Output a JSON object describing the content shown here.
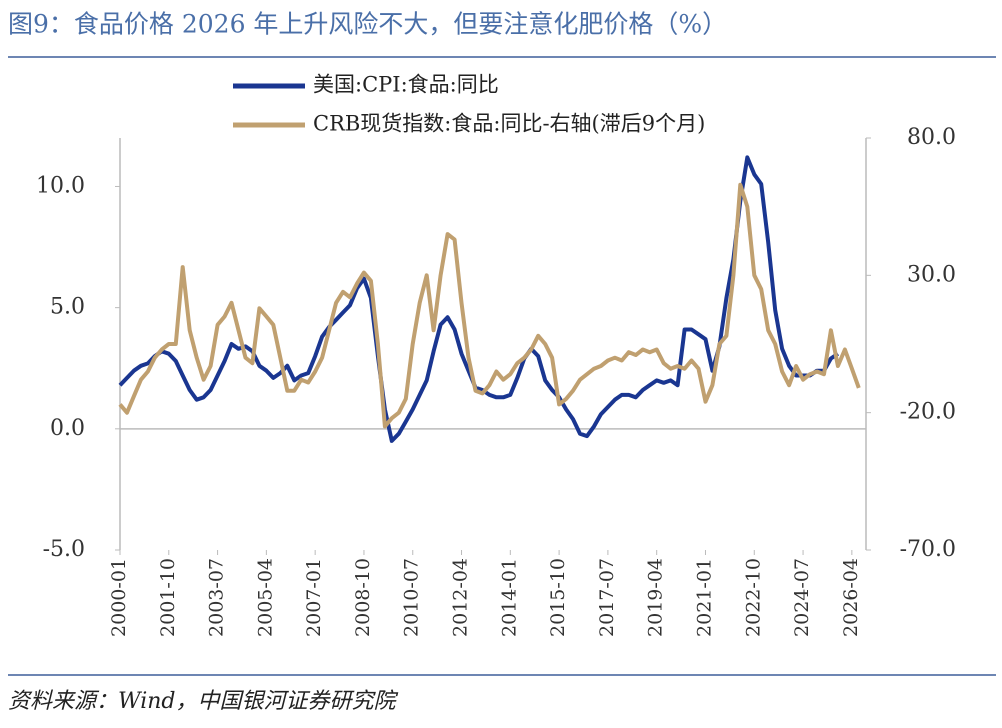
{
  "title": "图9：食品价格 2026 年上升风险不大，但要注意化肥价格（%）",
  "source": "资料来源：Wind，中国银河证券研究院",
  "chart_data": {
    "type": "line",
    "categories": [
      "2000-01",
      null,
      null,
      null,
      null,
      null,
      null,
      "2001-10",
      null,
      null,
      null,
      null,
      null,
      null,
      "2003-07",
      null,
      null,
      null,
      null,
      null,
      null,
      "2005-04",
      null,
      null,
      null,
      null,
      null,
      null,
      "2007-01",
      null,
      null,
      null,
      null,
      null,
      null,
      "2008-10",
      null,
      null,
      null,
      null,
      null,
      null,
      "2010-07",
      null,
      null,
      null,
      null,
      null,
      null,
      "2012-04",
      null,
      null,
      null,
      null,
      null,
      null,
      "2014-01",
      null,
      null,
      null,
      null,
      null,
      null,
      "2015-10",
      null,
      null,
      null,
      null,
      null,
      null,
      "2017-07",
      null,
      null,
      null,
      null,
      null,
      null,
      "2019-04",
      null,
      null,
      null,
      null,
      null,
      null,
      "2021-01",
      null,
      null,
      null,
      null,
      null,
      null,
      "2022-10",
      null,
      null,
      null,
      null,
      null,
      null,
      "2024-07",
      null,
      null,
      null,
      null,
      null,
      null,
      "2026-04",
      null
    ],
    "series": [
      {
        "name": "美国:CPI:食品:同比",
        "color": "#1a3691",
        "axis": "y",
        "values": [
          1.8,
          2.1,
          2.4,
          2.6,
          2.7,
          3.0,
          3.2,
          3.1,
          2.8,
          2.2,
          1.6,
          1.2,
          1.3,
          1.6,
          2.2,
          2.8,
          3.5,
          3.3,
          3.4,
          3.2,
          2.6,
          2.4,
          2.1,
          2.3,
          2.6,
          2.0,
          2.2,
          2.3,
          3.0,
          3.8,
          4.2,
          4.5,
          4.8,
          5.1,
          5.8,
          6.2,
          5.4,
          3.0,
          0.8,
          -0.5,
          -0.2,
          0.3,
          0.8,
          1.4,
          2.0,
          3.2,
          4.3,
          4.6,
          4.1,
          3.1,
          2.4,
          1.7,
          1.6,
          1.4,
          1.3,
          1.3,
          1.4,
          2.1,
          2.9,
          3.3,
          3.0,
          2.0,
          1.6,
          1.3,
          0.8,
          0.4,
          -0.2,
          -0.3,
          0.1,
          0.6,
          0.9,
          1.2,
          1.4,
          1.4,
          1.3,
          1.6,
          1.8,
          2.0,
          1.9,
          2.0,
          1.8,
          4.1,
          4.1,
          3.9,
          3.7,
          2.4,
          3.4,
          5.4,
          7.0,
          9.4,
          11.2,
          10.5,
          10.1,
          7.7,
          4.9,
          3.3,
          2.6,
          2.2,
          2.2,
          2.2,
          2.4,
          2.4,
          2.9,
          3.1,
          null,
          null,
          null
        ]
      },
      {
        "name": "CRB现货指数:食品:同比-右轴(滞后9个月)",
        "color": "#c0a070",
        "axis": "y2",
        "values": [
          -17,
          -20,
          -14,
          -8,
          -5,
          0,
          3,
          5,
          5,
          33,
          10,
          0,
          -8,
          -3,
          12,
          15,
          20,
          10,
          0,
          -2,
          18,
          15,
          12,
          0,
          -12,
          -12,
          -8,
          -9,
          -5,
          0,
          10,
          20,
          24,
          22,
          27,
          31,
          28,
          5,
          -25,
          -22,
          -20,
          -15,
          5,
          20,
          30,
          10,
          30,
          45,
          43,
          20,
          0,
          -12,
          -13,
          -10,
          -5,
          -8,
          -6,
          -2,
          0,
          3,
          8,
          5,
          0,
          -17,
          -15,
          -12,
          -8,
          -6,
          -4,
          -3,
          -1,
          0,
          -1,
          2,
          1,
          3,
          2,
          3,
          -2,
          -4,
          -3,
          -4,
          -1,
          -4,
          -16,
          -10,
          5,
          8,
          30,
          63,
          55,
          30,
          25,
          10,
          5,
          -5,
          -10,
          -3,
          -8,
          -6,
          -5,
          -6,
          10,
          -3,
          3,
          -4,
          -11
        ]
      }
    ],
    "ylim": [
      -5,
      12
    ],
    "yticks": [
      {
        "value": -5,
        "label": "-5.0"
      },
      {
        "value": 0,
        "label": "0.0"
      },
      {
        "value": 5,
        "label": "5.0"
      },
      {
        "value": 10,
        "label": "10.0"
      }
    ],
    "y2lim": [
      -70,
      80
    ],
    "y2ticks": [
      {
        "value": -70,
        "label": "-70.0"
      },
      {
        "value": -20,
        "label": "-20.0"
      },
      {
        "value": 30,
        "label": "30.0"
      },
      {
        "value": 80,
        "label": "80.0"
      }
    ],
    "legend": "top"
  }
}
